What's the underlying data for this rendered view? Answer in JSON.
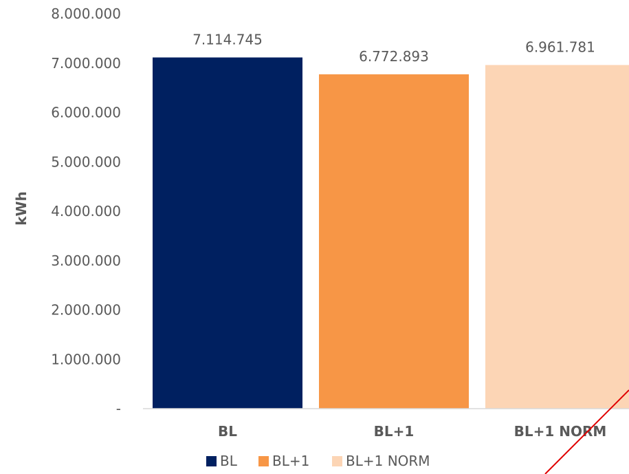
{
  "chart_data": {
    "type": "bar",
    "categories": [
      "BL",
      "BL+1",
      "BL+1 NORM"
    ],
    "values": [
      7114745,
      6772893,
      6961781
    ],
    "value_labels": [
      "7.114.745",
      "6.772.893",
      "6.961.781"
    ],
    "ylabel": "kWh",
    "ylim": [
      0,
      8000000
    ],
    "y_ticks": [
      0,
      1000000,
      2000000,
      3000000,
      4000000,
      5000000,
      6000000,
      7000000,
      8000000
    ],
    "y_tick_labels": [
      "-",
      "1.000.000",
      "2.000.000",
      "3.000.000",
      "4.000.000",
      "5.000.000",
      "6.000.000",
      "7.000.000",
      "8.000.000"
    ],
    "grid": false,
    "legend": {
      "position": "bottom",
      "entries": [
        "BL",
        "BL+1",
        "BL+1 NORM"
      ]
    },
    "colors": [
      "#002060",
      "#F79646",
      "#FCD5B5"
    ]
  }
}
